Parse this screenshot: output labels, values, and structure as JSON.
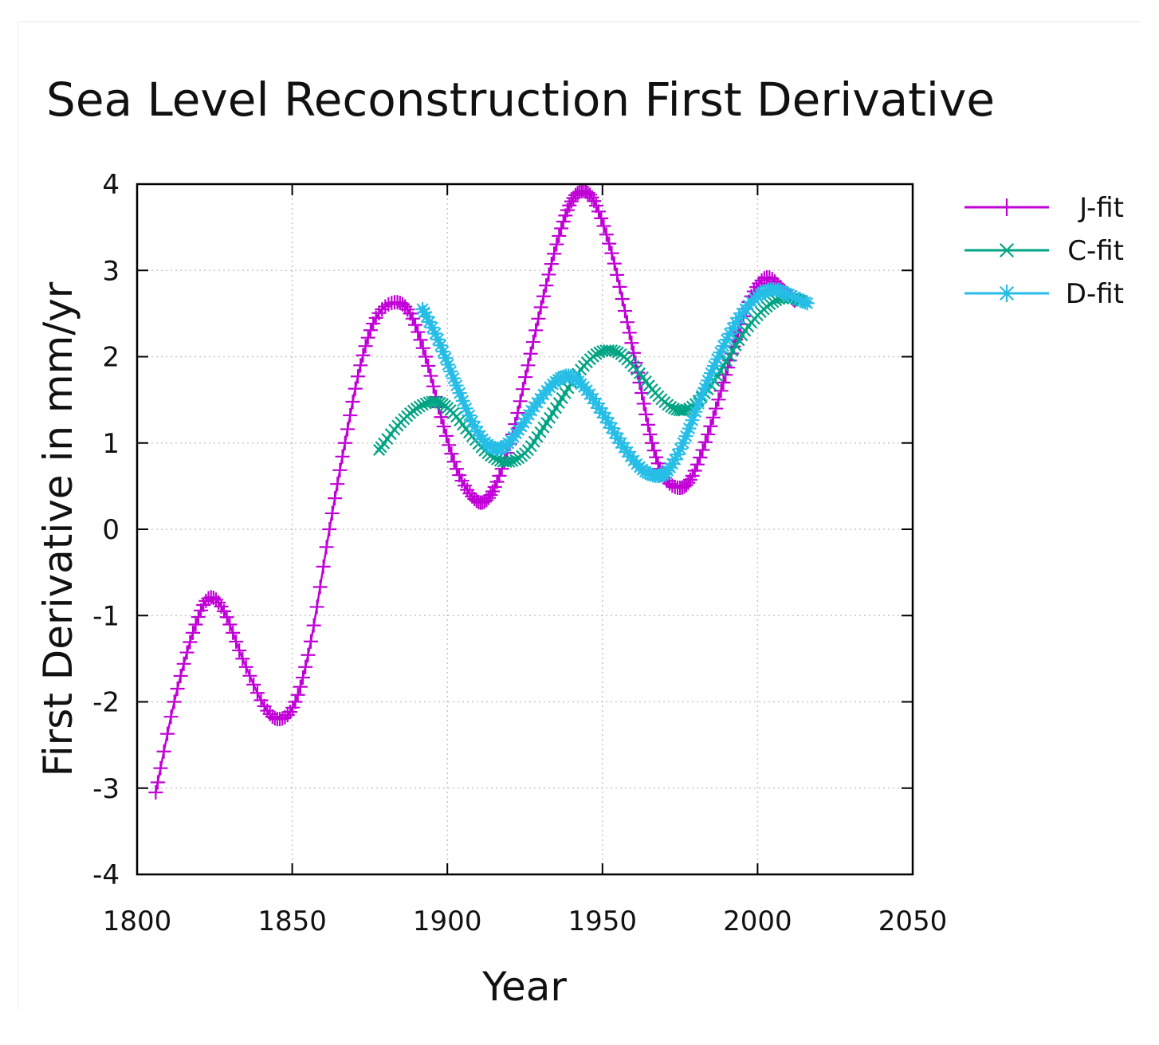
{
  "chart_data": {
    "type": "line",
    "title": "Sea Level Reconstruction First Derivative",
    "xlabel": "Year",
    "ylabel": "First Derivative in mm/yr",
    "xlim": [
      1800,
      2050
    ],
    "ylim": [
      -4,
      4
    ],
    "xticks": [
      "1800",
      "1850",
      "1900",
      "1950",
      "2000",
      "2050"
    ],
    "yticks": [
      "4",
      "3",
      "2",
      "1",
      "0",
      "-1",
      "-2",
      "-3",
      "-4"
    ],
    "grid": true,
    "legend_position": "top-right outside",
    "series": [
      {
        "name": "J-fit",
        "color": "#c000d6",
        "marker": "plus",
        "key": [
          [
            1806,
            -3.05
          ],
          [
            1812,
            -2.0
          ],
          [
            1818,
            -1.2
          ],
          [
            1823,
            -0.8
          ],
          [
            1828,
            -0.95
          ],
          [
            1834,
            -1.5
          ],
          [
            1841,
            -2.05
          ],
          [
            1846,
            -2.2
          ],
          [
            1851,
            -2.0
          ],
          [
            1856,
            -1.3
          ],
          [
            1862,
            0.0
          ],
          [
            1867,
            1.0
          ],
          [
            1872,
            1.9
          ],
          [
            1877,
            2.45
          ],
          [
            1883,
            2.63
          ],
          [
            1888,
            2.5
          ],
          [
            1893,
            2.0
          ],
          [
            1898,
            1.3
          ],
          [
            1903,
            0.7
          ],
          [
            1908,
            0.38
          ],
          [
            1912,
            0.32
          ],
          [
            1916,
            0.55
          ],
          [
            1921,
            1.1
          ],
          [
            1926,
            1.9
          ],
          [
            1931,
            2.7
          ],
          [
            1936,
            3.4
          ],
          [
            1940,
            3.8
          ],
          [
            1944,
            3.92
          ],
          [
            1948,
            3.75
          ],
          [
            1953,
            3.2
          ],
          [
            1958,
            2.4
          ],
          [
            1962,
            1.7
          ],
          [
            1966,
            1.0
          ],
          [
            1970,
            0.6
          ],
          [
            1975,
            0.48
          ],
          [
            1979,
            0.62
          ],
          [
            1984,
            1.1
          ],
          [
            1989,
            1.7
          ],
          [
            1993,
            2.2
          ],
          [
            1998,
            2.7
          ],
          [
            2003,
            2.92
          ],
          [
            2008,
            2.78
          ],
          [
            2012,
            2.65
          ]
        ]
      },
      {
        "name": "C-fit",
        "color": "#00a484",
        "marker": "x",
        "key": [
          [
            1878,
            0.92
          ],
          [
            1884,
            1.2
          ],
          [
            1890,
            1.4
          ],
          [
            1896,
            1.48
          ],
          [
            1901,
            1.38
          ],
          [
            1907,
            1.12
          ],
          [
            1913,
            0.88
          ],
          [
            1919,
            0.78
          ],
          [
            1925,
            0.88
          ],
          [
            1931,
            1.18
          ],
          [
            1937,
            1.52
          ],
          [
            1943,
            1.85
          ],
          [
            1949,
            2.05
          ],
          [
            1955,
            2.05
          ],
          [
            1961,
            1.85
          ],
          [
            1967,
            1.58
          ],
          [
            1973,
            1.4
          ],
          [
            1978,
            1.4
          ],
          [
            1984,
            1.62
          ],
          [
            1990,
            1.95
          ],
          [
            1996,
            2.3
          ],
          [
            2002,
            2.55
          ],
          [
            2008,
            2.68
          ],
          [
            2014,
            2.65
          ]
        ]
      },
      {
        "name": "D-fit",
        "color": "#26bde6",
        "marker": "star",
        "key": [
          [
            1892,
            2.55
          ],
          [
            1897,
            2.2
          ],
          [
            1902,
            1.75
          ],
          [
            1908,
            1.25
          ],
          [
            1913,
            0.98
          ],
          [
            1918,
            0.95
          ],
          [
            1923,
            1.15
          ],
          [
            1928,
            1.42
          ],
          [
            1934,
            1.68
          ],
          [
            1939,
            1.78
          ],
          [
            1944,
            1.65
          ],
          [
            1950,
            1.35
          ],
          [
            1956,
            1.0
          ],
          [
            1962,
            0.72
          ],
          [
            1967,
            0.62
          ],
          [
            1971,
            0.68
          ],
          [
            1976,
            1.0
          ],
          [
            1982,
            1.55
          ],
          [
            1988,
            2.05
          ],
          [
            1994,
            2.45
          ],
          [
            2000,
            2.7
          ],
          [
            2005,
            2.78
          ],
          [
            2010,
            2.72
          ],
          [
            2016,
            2.62
          ]
        ]
      }
    ]
  }
}
